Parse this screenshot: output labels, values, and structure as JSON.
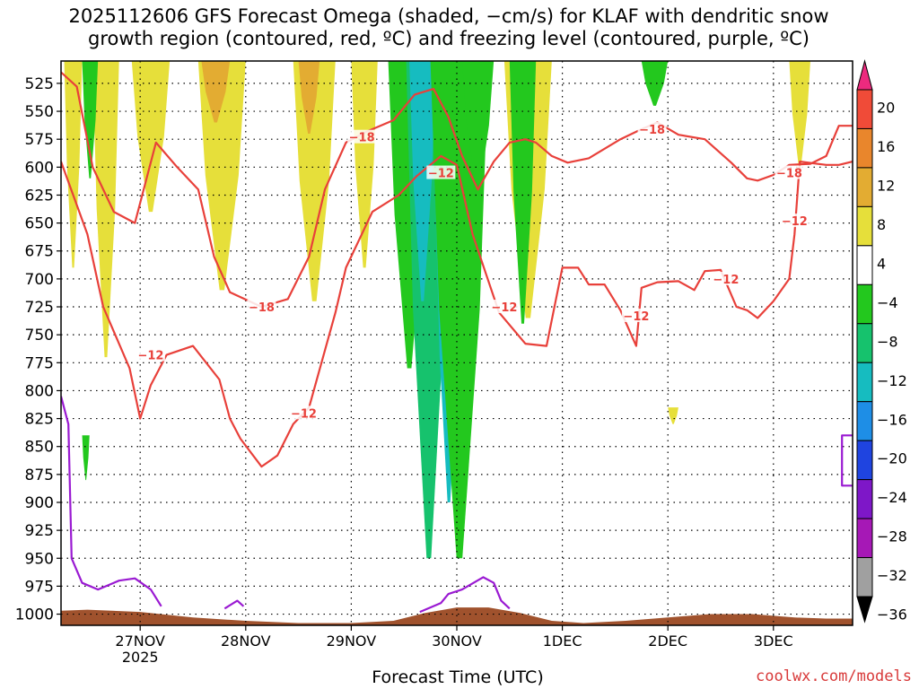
{
  "chart_data": {
    "type": "heatmap",
    "title_line1": "2025112606 GFS Forecast Omega (shaded, −cm/s) for KLAF with dendritic snow",
    "title_line2": "growth region (contoured, red, ºC) and freezing level (contoured, purple, ºC)",
    "xlabel": "Forecast Time (UTC)",
    "credit": "coolwx.com/models",
    "x_ticks": [
      "27NOV",
      "28NOV",
      "29NOV",
      "30NOV",
      "1DEC",
      "2DEC",
      "3DEC"
    ],
    "x_year_label": "2025",
    "x_range_days": [
      -0.75,
      6.75
    ],
    "y_ticks": [
      525,
      550,
      575,
      600,
      625,
      650,
      675,
      700,
      725,
      750,
      775,
      800,
      825,
      850,
      875,
      900,
      925,
      950,
      975,
      1000
    ],
    "ylim": [
      505,
      1010
    ],
    "grid": true,
    "colorbar": {
      "labels": [
        "20",
        "16",
        "12",
        "8",
        "4",
        "−4",
        "−8",
        "−12",
        "−16",
        "−20",
        "−24",
        "−28",
        "−32",
        "−36"
      ],
      "colors": [
        "#ec2a7e",
        "#f04b38",
        "#e9862c",
        "#e3ac32",
        "#e6df3a",
        "#ffffff",
        "#23c81e",
        "#16c26d",
        "#16bcc0",
        "#1e8ee6",
        "#1f44e0",
        "#7e17c8",
        "#a618b6",
        "#a0a0a0",
        "#000000"
      ]
    },
    "omega_regions": [
      {
        "color": "#e6df3a",
        "x_range": [
          -0.72,
          -0.55
        ],
        "p_range": [
          505,
          690
        ]
      },
      {
        "color": "#e6df3a",
        "x_range": [
          -0.45,
          -0.2
        ],
        "p_range": [
          505,
          770
        ]
      },
      {
        "color": "#e6df3a",
        "x_range": [
          -0.08,
          0.28
        ],
        "p_range": [
          505,
          640
        ]
      },
      {
        "color": "#e6df3a",
        "x_range": [
          0.55,
          1.0
        ],
        "p_range": [
          505,
          710
        ]
      },
      {
        "color": "#e3ac32",
        "x_range": [
          0.58,
          0.85
        ],
        "p_range": [
          505,
          560
        ]
      },
      {
        "color": "#e6df3a",
        "x_range": [
          1.45,
          1.85
        ],
        "p_range": [
          505,
          720
        ]
      },
      {
        "color": "#e3ac32",
        "x_range": [
          1.5,
          1.7
        ],
        "p_range": [
          505,
          570
        ]
      },
      {
        "color": "#e6df3a",
        "x_range": [
          2.0,
          2.25
        ],
        "p_range": [
          505,
          690
        ]
      },
      {
        "color": "#23c81e",
        "x_range": [
          -0.55,
          -0.4
        ],
        "p_range": [
          505,
          610
        ]
      },
      {
        "color": "#23c81e",
        "x_range": [
          2.35,
          2.75
        ],
        "p_range": [
          505,
          780
        ]
      },
      {
        "color": "#16c26d",
        "x_range": [
          2.52,
          2.95
        ],
        "p_range": [
          505,
          950
        ]
      },
      {
        "color": "#16bcc0",
        "x_range": [
          2.55,
          2.8
        ],
        "p_range": [
          505,
          720
        ]
      },
      {
        "color": "#16bcc0",
        "x_range": [
          2.8,
          3.05
        ],
        "p_range": [
          640,
          900
        ]
      },
      {
        "color": "#23c81e",
        "x_range": [
          2.75,
          3.3
        ],
        "p_range": [
          505,
          950
        ]
      },
      {
        "color": "#23c81e",
        "x_range": [
          3.05,
          3.35
        ],
        "p_range": [
          505,
          620
        ]
      },
      {
        "color": "#e6df3a",
        "x_range": [
          3.45,
          3.9
        ],
        "p_range": [
          505,
          735
        ]
      },
      {
        "color": "#23c81e",
        "x_range": [
          3.5,
          3.75
        ],
        "p_range": [
          505,
          740
        ]
      },
      {
        "color": "#23c81e",
        "x_range": [
          4.75,
          5.0
        ],
        "p_range": [
          505,
          545
        ]
      },
      {
        "color": "#e6df3a",
        "x_range": [
          5.0,
          5.1
        ],
        "p_range": [
          815,
          830
        ]
      },
      {
        "color": "#e6df3a",
        "x_range": [
          6.15,
          6.35
        ],
        "p_range": [
          505,
          600
        ]
      },
      {
        "color": "#23c81e",
        "x_range": [
          -0.55,
          -0.48
        ],
        "p_range": [
          840,
          880
        ]
      }
    ],
    "series": [
      {
        "name": "-18",
        "color": "#e8403a",
        "label_positions": [
          [
            1.15,
            725
          ],
          [
            2.1,
            573
          ],
          [
            4.85,
            566
          ],
          [
            6.15,
            605
          ]
        ],
        "lines": [
          [
            [
              -0.75,
              515
            ],
            [
              -0.6,
              528
            ],
            [
              -0.45,
              600
            ],
            [
              -0.25,
              640
            ],
            [
              -0.05,
              650
            ],
            [
              0.15,
              578
            ],
            [
              0.35,
              600
            ],
            [
              0.55,
              620
            ],
            [
              0.7,
              680
            ],
            [
              0.85,
              712
            ],
            [
              1.15,
              725
            ],
            [
              1.4,
              718
            ],
            [
              1.6,
              680
            ],
            [
              1.75,
              620
            ],
            [
              1.95,
              578
            ],
            [
              2.15,
              568
            ],
            [
              2.4,
              558
            ],
            [
              2.6,
              535
            ],
            [
              2.78,
              530
            ],
            [
              2.92,
              555
            ],
            [
              3.05,
              590
            ],
            [
              3.2,
              620
            ],
            [
              3.35,
              595
            ],
            [
              3.5,
              578
            ],
            [
              3.65,
              575
            ],
            [
              3.75,
              578
            ],
            [
              3.9,
              590
            ],
            [
              4.05,
              596
            ],
            [
              4.25,
              592
            ],
            [
              4.55,
              575
            ],
            [
              4.75,
              566
            ],
            [
              4.9,
              560
            ],
            [
              5.1,
              571
            ],
            [
              5.35,
              575
            ],
            [
              5.6,
              596
            ],
            [
              5.75,
              610
            ],
            [
              5.85,
              612
            ],
            [
              6.0,
              607
            ],
            [
              6.15,
              598
            ],
            [
              6.35,
              597
            ],
            [
              6.5,
              590
            ],
            [
              6.62,
              563
            ],
            [
              6.75,
              563
            ]
          ]
        ]
      },
      {
        "name": "-12",
        "color": "#e8403a",
        "label_positions": [
          [
            0.1,
            768
          ],
          [
            1.55,
            820
          ],
          [
            2.85,
            605
          ],
          [
            3.45,
            725
          ],
          [
            4.7,
            733
          ],
          [
            5.55,
            700
          ],
          [
            6.2,
            648
          ]
        ],
        "lines": [
          [
            [
              -0.75,
              595
            ],
            [
              -0.5,
              660
            ],
            [
              -0.35,
              725
            ],
            [
              -0.1,
              780
            ],
            [
              0.0,
              825
            ],
            [
              0.1,
              795
            ],
            [
              0.25,
              768
            ],
            [
              0.5,
              760
            ],
            [
              0.75,
              790
            ],
            [
              0.85,
              825
            ],
            [
              0.95,
              843
            ],
            [
              1.15,
              868
            ],
            [
              1.3,
              858
            ],
            [
              1.45,
              830
            ],
            [
              1.6,
              815
            ],
            [
              1.85,
              730
            ],
            [
              1.95,
              690
            ],
            [
              2.2,
              640
            ],
            [
              2.45,
              625
            ],
            [
              2.62,
              608
            ],
            [
              2.85,
              590
            ],
            [
              3.0,
              598
            ],
            [
              3.15,
              660
            ],
            [
              3.4,
              730
            ],
            [
              3.65,
              758
            ],
            [
              3.85,
              760
            ],
            [
              4.0,
              690
            ],
            [
              4.15,
              690
            ],
            [
              4.25,
              705
            ],
            [
              4.4,
              705
            ],
            [
              4.55,
              728
            ],
            [
              4.7,
              760
            ],
            [
              4.75,
              708
            ],
            [
              4.9,
              703
            ],
            [
              5.1,
              702
            ],
            [
              5.25,
              710
            ],
            [
              5.35,
              693
            ],
            [
              5.5,
              692
            ],
            [
              5.65,
              725
            ],
            [
              5.75,
              728
            ],
            [
              5.85,
              735
            ],
            [
              6.0,
              720
            ],
            [
              6.15,
              700
            ],
            [
              6.2,
              660
            ],
            [
              6.25,
              595
            ],
            [
              6.5,
              598
            ],
            [
              6.62,
              598
            ],
            [
              6.75,
              595
            ]
          ]
        ]
      },
      {
        "name": "freezing",
        "color": "#9a1ad2",
        "label_positions": [],
        "lines": [
          [
            [
              -0.75,
              805
            ],
            [
              -0.68,
              830
            ],
            [
              -0.65,
              950
            ],
            [
              -0.55,
              972
            ],
            [
              -0.4,
              978
            ],
            [
              -0.2,
              970
            ],
            [
              -0.05,
              968
            ],
            [
              0.1,
              978
            ],
            [
              0.2,
              993
            ]
          ],
          [
            [
              0.8,
              995
            ],
            [
              0.92,
              988
            ],
            [
              0.98,
              993
            ]
          ],
          [
            [
              2.65,
              998
            ],
            [
              2.85,
              990
            ],
            [
              2.92,
              982
            ],
            [
              3.05,
              978
            ],
            [
              3.25,
              967
            ],
            [
              3.35,
              972
            ],
            [
              3.42,
              988
            ],
            [
              3.5,
              995
            ]
          ],
          [
            [
              6.75,
              840
            ],
            [
              6.65,
              840
            ],
            [
              6.65,
              885
            ],
            [
              6.75,
              885
            ]
          ]
        ]
      }
    ],
    "terrain_color": "#a0522d"
  }
}
